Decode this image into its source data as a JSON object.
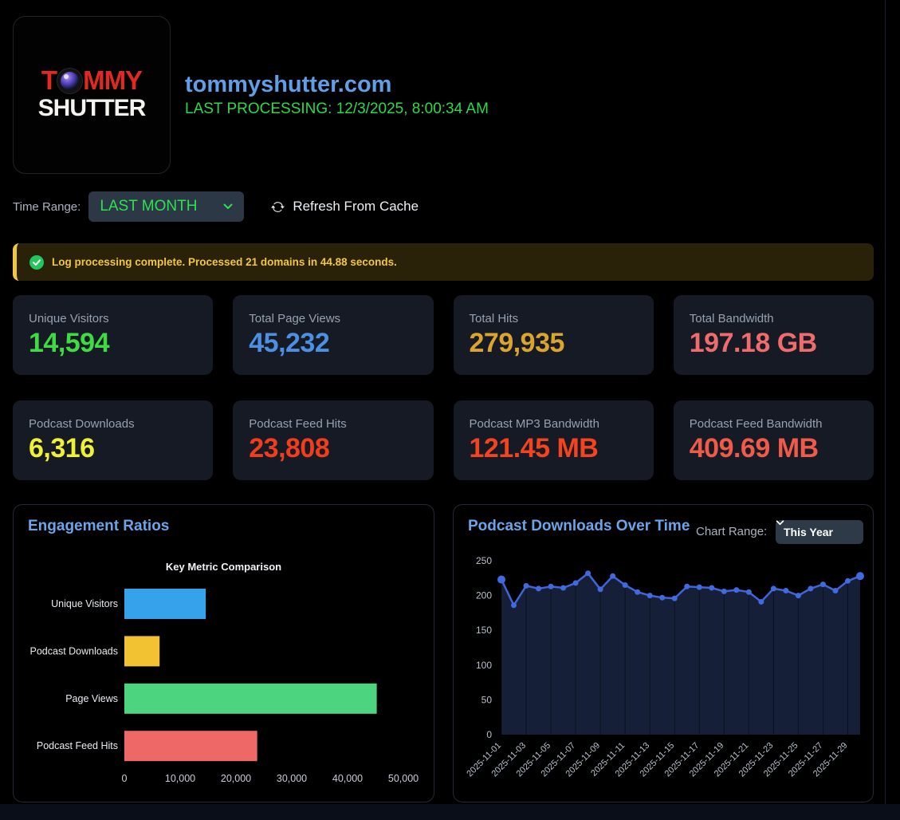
{
  "header": {
    "logo": {
      "line1_pre": "T",
      "line1_post": "MMY",
      "line2": "SHUTTER"
    },
    "domain": "tommyshutter.com",
    "last_processing": "LAST PROCESSING: 12/3/2025, 8:00:34 AM"
  },
  "controls": {
    "time_range_label": "Time Range:",
    "time_range_value": "LAST MONTH",
    "refresh_label": "Refresh From Cache"
  },
  "alert": {
    "message": "Log processing complete. Processed 21 domains in 44.88 seconds."
  },
  "stats": [
    {
      "label": "Unique Visitors",
      "value": "14,594",
      "color": "#3edc42"
    },
    {
      "label": "Total Page Views",
      "value": "45,232",
      "color": "#4d90e2"
    },
    {
      "label": "Total Hits",
      "value": "279,935",
      "color": "#dba42d"
    },
    {
      "label": "Total Bandwidth",
      "value": "197.18 GB",
      "color": "#f06c6c"
    },
    {
      "label": "Podcast Downloads",
      "value": "6,316",
      "color": "#eef135"
    },
    {
      "label": "Podcast Feed Hits",
      "value": "23,808",
      "color": "#f23d1d"
    },
    {
      "label": "Podcast MP3 Bandwidth",
      "value": "121.45 MB",
      "color": "#f5431f"
    },
    {
      "label": "Podcast Feed Bandwidth",
      "value": "409.69 MB",
      "color": "#f05a49"
    }
  ],
  "panels": {
    "engagement": {
      "title": "Engagement Ratios"
    },
    "downloads": {
      "title": "Podcast Downloads Over Time",
      "range_label": "Chart Range:",
      "range_value": "This Year"
    }
  },
  "icons": {
    "refresh": "arrow-repeat",
    "success": "check-circle",
    "chevron": "chevron-down"
  },
  "chart_data": [
    {
      "type": "bar",
      "orientation": "horizontal",
      "title": "Key Metric Comparison",
      "categories": [
        "Unique Visitors",
        "Podcast Downloads",
        "Page Views",
        "Podcast Feed Hits"
      ],
      "values": [
        14594,
        6316,
        45232,
        23808
      ],
      "colors": [
        "#36a2eb",
        "#f2c233",
        "#4cd47f",
        "#ee6868"
      ],
      "xlabel": "",
      "ylabel": "",
      "xlim": [
        0,
        50000
      ],
      "x_ticks": [
        0,
        10000,
        20000,
        30000,
        40000,
        50000
      ],
      "grid": false,
      "legend": false
    },
    {
      "type": "line",
      "title": "Podcast Downloads Over Time",
      "x": [
        "2025-11-01",
        "2025-11-02",
        "2025-11-03",
        "2025-11-04",
        "2025-11-05",
        "2025-11-06",
        "2025-11-07",
        "2025-11-08",
        "2025-11-09",
        "2025-11-10",
        "2025-11-11",
        "2025-11-12",
        "2025-11-13",
        "2025-11-14",
        "2025-11-15",
        "2025-11-16",
        "2025-11-17",
        "2025-11-18",
        "2025-11-19",
        "2025-11-20",
        "2025-11-21",
        "2025-11-22",
        "2025-11-23",
        "2025-11-24",
        "2025-11-25",
        "2025-11-26",
        "2025-11-27",
        "2025-11-28",
        "2025-11-29",
        "2025-11-30"
      ],
      "values": [
        223,
        186,
        214,
        210,
        213,
        211,
        218,
        232,
        209,
        228,
        215,
        205,
        200,
        197,
        196,
        213,
        212,
        211,
        206,
        208,
        205,
        191,
        210,
        207,
        200,
        210,
        216,
        207,
        221,
        228
      ],
      "ylim": [
        0,
        250
      ],
      "y_ticks": [
        0,
        50,
        100,
        150,
        200,
        250
      ],
      "x_label_every": 2,
      "line_color": "#3f65d8",
      "point_color": "#4169e0",
      "fill_color": "#151f38",
      "grid": false,
      "legend": false
    }
  ]
}
